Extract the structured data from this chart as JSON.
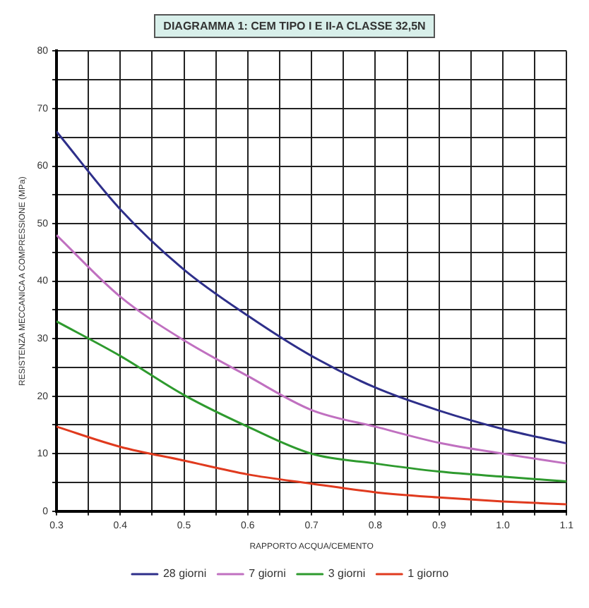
{
  "chart_data": {
    "type": "line",
    "title": "DIAGRAMMA 1: CEM TIPO I E II-A CLASSE 32,5N",
    "xlabel": "RAPPORTO ACQUA/CEMENTO",
    "ylabel": "RESISTENZA MECCANICA A COMPRESSIONE (MPa)",
    "x": [
      0.3,
      0.4,
      0.5,
      0.6,
      0.7,
      0.8,
      0.9,
      1.0,
      1.1
    ],
    "series": [
      {
        "name": "28 giorni",
        "color": "#2e2f8a",
        "values": [
          66,
          52.5,
          42,
          34,
          27,
          21.5,
          17.5,
          14.3,
          11.8
        ]
      },
      {
        "name": "7 giorni",
        "color": "#c070c0",
        "values": [
          48,
          37.3,
          29.7,
          23.5,
          17.6,
          14.7,
          11.9,
          10,
          8.3
        ]
      },
      {
        "name": "3 giorni",
        "color": "#2e9a2e",
        "values": [
          33,
          27,
          20.2,
          14.7,
          10,
          8.3,
          6.9,
          6,
          5.2
        ]
      },
      {
        "name": "1 giorno",
        "color": "#e03a1e",
        "values": [
          14.7,
          11.2,
          8.8,
          6.4,
          4.8,
          3.3,
          2.4,
          1.7,
          1.2
        ]
      }
    ],
    "xlim": [
      0.3,
      1.1
    ],
    "xticks": [
      0.3,
      {
        "value": 0.35,
        "label": null
      },
      0.4,
      {
        "value": 0.45,
        "label": null
      },
      0.5,
      {
        "value": 0.55,
        "label": null
      },
      0.6,
      {
        "value": 0.65,
        "label": null
      },
      0.7,
      {
        "value": 0.75,
        "label": null
      },
      0.8,
      {
        "value": 0.85,
        "label": null
      },
      0.9,
      {
        "value": 0.95,
        "label": null
      },
      {
        "value": 1,
        "label": "1.0"
      },
      {
        "value": 1.05,
        "label": null
      },
      1.1
    ],
    "ylim": [
      0,
      80
    ],
    "yticks": [
      0,
      {
        "value": 5,
        "label": null
      },
      10,
      {
        "value": 15,
        "label": null
      },
      20,
      {
        "value": 25,
        "label": null
      },
      30,
      {
        "value": 35,
        "label": null
      },
      40,
      {
        "value": 45,
        "label": null
      },
      50,
      {
        "value": 55,
        "label": null
      },
      60,
      {
        "value": 65,
        "label": null
      },
      70,
      {
        "value": 75,
        "label": null
      },
      80
    ],
    "grid": true,
    "legend": "bottom",
    "marker": "none",
    "line_style": "solid"
  }
}
